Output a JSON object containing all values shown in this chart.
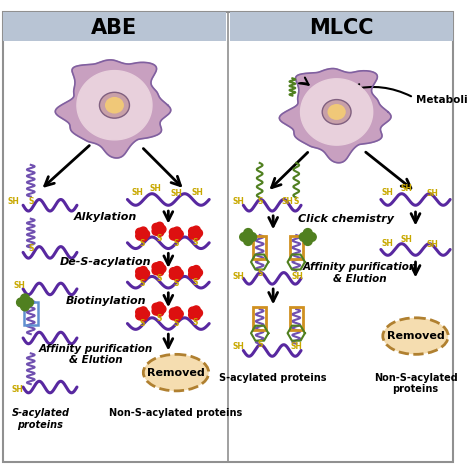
{
  "title_abe": "ABE",
  "title_mlcc": "MLCC",
  "header_color": "#b8c4d4",
  "bg_color": "#ffffff",
  "cell_outer_color": "#c8a0c0",
  "cell_inner_color": "#e8d0dc",
  "cell_membrane_color": "#8060a0",
  "cell_nucleus_outer": "#b09090",
  "cell_nucleus_inner": "#f0c878",
  "protein_color": "#5828a0",
  "sh_color": "#c8a800",
  "s_color": "#c8a800",
  "red_dot_color": "#dd1010",
  "green_shape_color": "#508020",
  "blue_rect_color": "#6090d0",
  "orange_rect_color": "#d09020",
  "arrow_color": "#000000",
  "coil_color": "#7050b0",
  "green_coil_color": "#508020",
  "label_alkylation": "Alkylation",
  "label_desacylation": "De-S-acylation",
  "label_biotinylation": "Biotinylation",
  "label_affinity_abe": "Affinity purification\n& Elution",
  "label_click": "Click chemistry",
  "label_affinity_mlcc": "Affinity purification\n& Elution",
  "label_removed": "Removed",
  "label_metaboli": "Metaboli",
  "bottom_abe_l": "S-acylated\nproteins",
  "bottom_abe_r": "Non-S-acylated proteins",
  "bottom_mlcc_l": "S-acylated proteins",
  "bottom_mlcc_r": "Non-S-acylated\nproteins"
}
